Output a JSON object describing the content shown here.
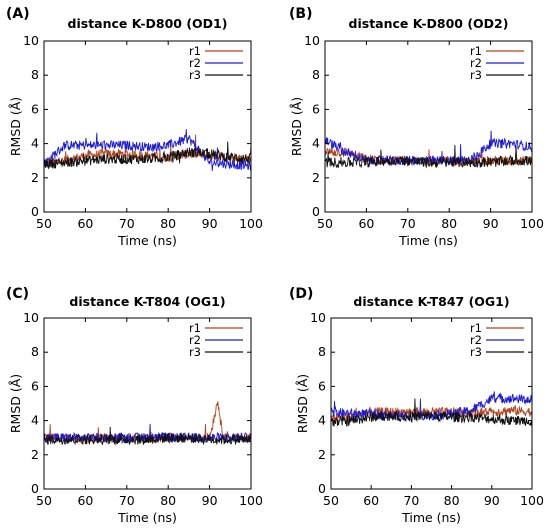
{
  "series_colors": {
    "r1": "#b3441e",
    "r2": "#1a1adb",
    "r3": "#111111"
  },
  "chart_data": [
    {
      "panel_label": "(A)",
      "title": "distance K-D800 (OD1)",
      "type": "line",
      "xlabel": "Time (ns)",
      "ylabel": "RMSD (Å)",
      "xlim": [
        50,
        100
      ],
      "ylim": [
        0,
        10
      ],
      "xticks": [
        "50",
        "60",
        "70",
        "80",
        "90",
        "100"
      ],
      "yticks": [
        "0",
        "2",
        "4",
        "6",
        "8",
        "10"
      ],
      "legend_position": "top-right",
      "series": [
        {
          "name": "r1",
          "x": [
            50,
            55,
            60,
            65,
            70,
            75,
            80,
            85,
            90,
            95,
            100
          ],
          "values": [
            2.8,
            3.0,
            3.3,
            3.4,
            3.4,
            3.3,
            3.2,
            3.4,
            3.3,
            3.2,
            3.1
          ]
        },
        {
          "name": "r2",
          "x": [
            50,
            55,
            60,
            65,
            70,
            75,
            80,
            85,
            90,
            95,
            100
          ],
          "values": [
            2.8,
            3.9,
            3.9,
            3.9,
            3.9,
            3.8,
            3.9,
            4.3,
            2.9,
            2.8,
            2.7
          ]
        },
        {
          "name": "r3",
          "x": [
            50,
            55,
            60,
            65,
            70,
            75,
            80,
            85,
            90,
            95,
            100
          ],
          "values": [
            2.8,
            2.9,
            3.0,
            3.1,
            3.1,
            3.1,
            3.2,
            3.5,
            3.4,
            3.2,
            3.1
          ]
        }
      ]
    },
    {
      "panel_label": "(B)",
      "title": "distance K-D800 (OD2)",
      "type": "line",
      "xlabel": "Time (ns)",
      "ylabel": "RMSD (Å)",
      "xlim": [
        50,
        100
      ],
      "ylim": [
        0,
        10
      ],
      "xticks": [
        "50",
        "60",
        "70",
        "80",
        "90",
        "100"
      ],
      "yticks": [
        "0",
        "2",
        "4",
        "6",
        "8",
        "10"
      ],
      "legend_position": "top-right",
      "series": [
        {
          "name": "r1",
          "x": [
            50,
            55,
            60,
            65,
            70,
            75,
            80,
            85,
            90,
            95,
            100
          ],
          "values": [
            3.5,
            3.5,
            3.1,
            3.0,
            3.0,
            3.0,
            3.0,
            3.0,
            3.0,
            3.0,
            3.0
          ]
        },
        {
          "name": "r2",
          "x": [
            50,
            55,
            60,
            65,
            70,
            75,
            80,
            85,
            90,
            95,
            100
          ],
          "values": [
            4.2,
            3.5,
            3.0,
            3.0,
            3.0,
            3.0,
            3.0,
            3.0,
            4.0,
            4.0,
            3.8
          ]
        },
        {
          "name": "r3",
          "x": [
            50,
            55,
            60,
            65,
            70,
            75,
            80,
            85,
            90,
            95,
            100
          ],
          "values": [
            2.9,
            2.9,
            2.9,
            3.0,
            3.0,
            2.9,
            2.9,
            2.9,
            2.9,
            3.0,
            3.0
          ]
        }
      ]
    },
    {
      "panel_label": "(C)",
      "title": "distance K-T804 (OG1)",
      "type": "line",
      "xlabel": "Time (ns)",
      "ylabel": "RMSD (Å)",
      "xlim": [
        50,
        100
      ],
      "ylim": [
        0,
        10
      ],
      "xticks": [
        "50",
        "60",
        "70",
        "80",
        "90",
        "100"
      ],
      "yticks": [
        "0",
        "2",
        "4",
        "6",
        "8",
        "10"
      ],
      "legend_position": "top-right",
      "series": [
        {
          "name": "r1",
          "x": [
            50,
            55,
            60,
            65,
            70,
            75,
            80,
            85,
            90,
            92,
            93,
            95,
            100
          ],
          "values": [
            3.0,
            3.0,
            2.9,
            3.0,
            3.0,
            3.0,
            3.0,
            3.0,
            3.0,
            5.2,
            3.3,
            3.0,
            3.0
          ]
        },
        {
          "name": "r2",
          "x": [
            50,
            55,
            60,
            65,
            70,
            75,
            80,
            85,
            90,
            95,
            100
          ],
          "values": [
            3.0,
            3.0,
            3.0,
            3.0,
            3.0,
            3.0,
            3.0,
            3.0,
            3.0,
            3.0,
            3.0
          ]
        },
        {
          "name": "r3",
          "x": [
            50,
            55,
            60,
            65,
            70,
            75,
            80,
            85,
            90,
            95,
            100
          ],
          "values": [
            2.9,
            2.9,
            2.9,
            2.9,
            2.9,
            2.9,
            3.0,
            3.0,
            2.9,
            2.9,
            2.9
          ]
        }
      ]
    },
    {
      "panel_label": "(D)",
      "title": "distance K-T847 (OG1)",
      "type": "line",
      "xlabel": "Time (ns)",
      "ylabel": "RMSD (Å)",
      "xlim": [
        50,
        100
      ],
      "ylim": [
        0,
        10
      ],
      "xticks": [
        "50",
        "60",
        "70",
        "80",
        "90",
        "100"
      ],
      "yticks": [
        "0",
        "2",
        "4",
        "6",
        "8",
        "10"
      ],
      "legend_position": "top-right",
      "series": [
        {
          "name": "r1",
          "x": [
            50,
            55,
            60,
            65,
            70,
            75,
            80,
            85,
            90,
            95,
            100
          ],
          "values": [
            4.2,
            4.3,
            4.5,
            4.5,
            4.5,
            4.5,
            4.5,
            4.5,
            4.5,
            4.6,
            4.5
          ]
        },
        {
          "name": "r2",
          "x": [
            50,
            55,
            60,
            65,
            70,
            75,
            80,
            85,
            90,
            95,
            100
          ],
          "values": [
            4.5,
            4.4,
            4.4,
            4.3,
            4.3,
            4.3,
            4.4,
            4.6,
            5.3,
            5.3,
            5.2
          ]
        },
        {
          "name": "r3",
          "x": [
            50,
            55,
            60,
            65,
            70,
            75,
            80,
            85,
            90,
            95,
            100
          ],
          "values": [
            3.9,
            4.0,
            4.2,
            4.3,
            4.2,
            4.3,
            4.2,
            4.2,
            4.1,
            4.0,
            4.0
          ]
        }
      ]
    }
  ]
}
